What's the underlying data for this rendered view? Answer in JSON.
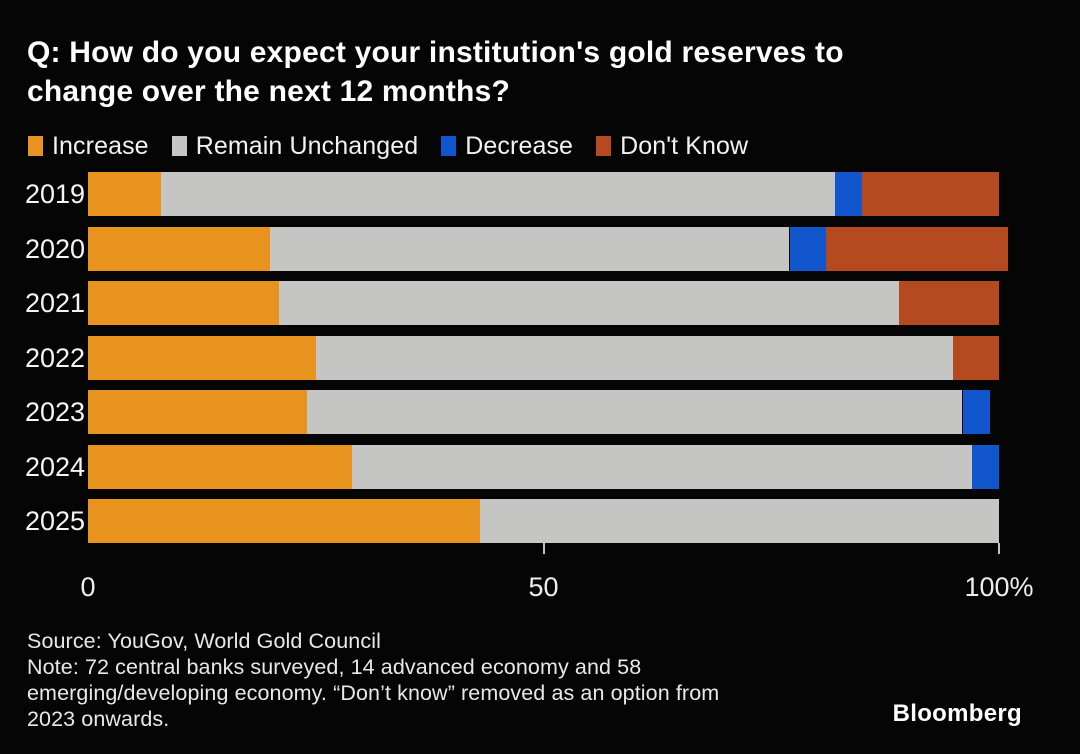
{
  "header": {
    "title_line1": "Q: How do you expect your institution's gold reserves to",
    "title_line2": "change over the next 12 months?"
  },
  "colors": {
    "increase": "#E8931E",
    "remain_unchanged": "#C5C5C3",
    "decrease": "#1156CC",
    "dont_know": "#B54A21",
    "background": "#050505",
    "text": "#FFFFFF"
  },
  "legend": [
    {
      "label": "Increase",
      "color": "#E8931E"
    },
    {
      "label": "Remain Unchanged",
      "color": "#C5C5C3"
    },
    {
      "label": "Decrease",
      "color": "#1156CC"
    },
    {
      "label": "Don't Know",
      "color": "#B54A21"
    }
  ],
  "chart_data": {
    "type": "bar",
    "orientation": "horizontal",
    "stacked": true,
    "title": "Q: How do you expect your institution's gold reserves to change over the next 12 months?",
    "categories": [
      "2019",
      "2020",
      "2021",
      "2022",
      "2023",
      "2024",
      "2025"
    ],
    "series": [
      {
        "name": "Increase",
        "color": "#E8931E",
        "values": [
          8,
          20,
          21,
          25,
          24,
          29,
          43
        ]
      },
      {
        "name": "Remain Unchanged",
        "color": "#C5C5C3",
        "values": [
          74,
          57,
          68,
          70,
          72,
          68,
          57
        ]
      },
      {
        "name": "Decrease",
        "color": "#1156CC",
        "values": [
          3,
          4,
          0,
          0,
          3,
          3,
          0
        ]
      },
      {
        "name": "Don't Know",
        "color": "#B54A21",
        "values": [
          15,
          20,
          11,
          5,
          0,
          0,
          0
        ]
      }
    ],
    "xlabel": "",
    "ylabel": "",
    "xlim": [
      0,
      100
    ],
    "grid": false,
    "legend_position": "top",
    "xticks": [
      {
        "value": 0,
        "label": "0",
        "mark": false
      },
      {
        "value": 50,
        "label": "50",
        "mark": true
      },
      {
        "value": 100,
        "label": "100%",
        "mark": true
      }
    ]
  },
  "footer": {
    "source": "Source: YouGov, World Gold Council",
    "note_line1": "Note: 72 central banks surveyed, 14 advanced economy and 58",
    "note_line2": "emerging/developing economy. “Don’t know” removed as an option from",
    "note_line3": "2023 onwards.",
    "brand": "Bloomberg"
  }
}
